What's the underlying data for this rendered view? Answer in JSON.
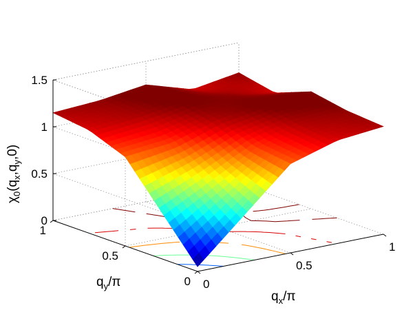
{
  "chart_data": {
    "type": "surface",
    "title": "",
    "xlabel": "q",
    "xlabel_sub": "x",
    "xlabel_tail": "/π",
    "ylabel": "q",
    "ylabel_sub": "y",
    "ylabel_tail": "/π",
    "zlabel_parts": [
      "χ",
      "0",
      "(q",
      "x",
      ",q",
      "y",
      ",0)"
    ],
    "x_ticks": [
      "0",
      "0.5",
      "1"
    ],
    "y_ticks": [
      "0",
      "0.5",
      "1"
    ],
    "z_ticks": [
      "0",
      "0.5",
      "1",
      "1.5"
    ],
    "xlim": [
      0,
      1
    ],
    "ylim": [
      0,
      1
    ],
    "zlim": [
      0,
      1.5
    ],
    "grid": true,
    "colormap": "jet",
    "color_range": [
      0.05,
      1.2
    ],
    "surface_grid": {
      "x": [
        0,
        0.25,
        0.5,
        0.75,
        1
      ],
      "y": [
        0,
        0.25,
        0.5,
        0.75,
        1
      ],
      "z": [
        [
          0.05,
          0.5,
          0.95,
          1.1,
          1.15
        ],
        [
          0.5,
          0.75,
          1.0,
          1.15,
          1.18
        ],
        [
          0.95,
          1.0,
          1.15,
          1.22,
          1.25
        ],
        [
          1.1,
          1.15,
          1.22,
          1.18,
          1.1
        ],
        [
          1.15,
          1.18,
          1.25,
          1.1,
          1.18
        ]
      ]
    },
    "contour_levels": [
      0.3,
      0.6,
      0.9,
      1.1,
      1.2
    ]
  }
}
